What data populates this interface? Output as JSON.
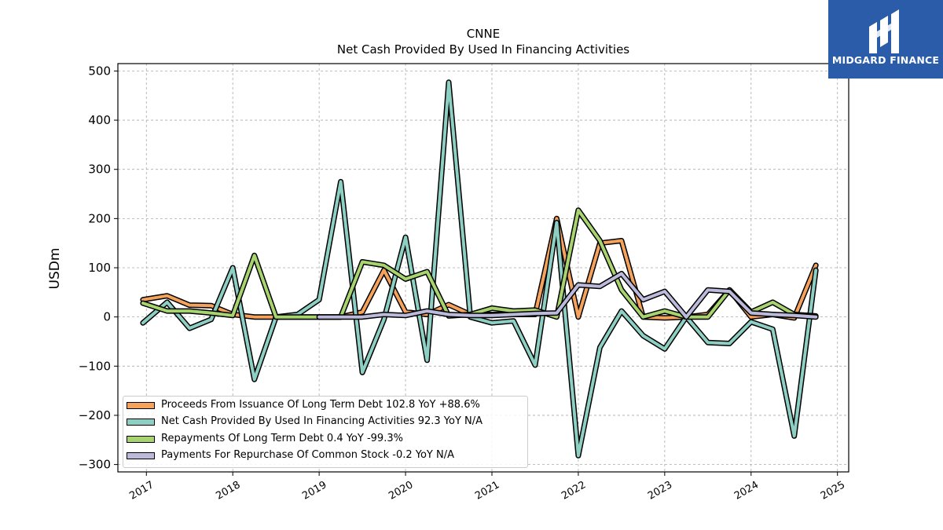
{
  "brand": {
    "name": "MIDGARD FINANCE",
    "color": "#2a5caa",
    "icon": "midgard-logo-icon"
  },
  "chart_data": {
    "type": "line",
    "title": "CNNE",
    "subtitle": "Net Cash Provided By Used In Financing Activities",
    "ylabel": "USDm",
    "xlabel": "",
    "ylim": [
      -315,
      515
    ],
    "xlim": [
      2016.67,
      2025.13
    ],
    "yticks": [
      -300,
      -200,
      -100,
      0,
      100,
      200,
      300,
      400,
      500
    ],
    "ytick_labels": [
      "−300",
      "−200",
      "−100",
      "0",
      "100",
      "200",
      "300",
      "400",
      "500"
    ],
    "xticks": [
      2017,
      2018,
      2019,
      2020,
      2021,
      2022,
      2023,
      2024,
      2025
    ],
    "xtick_labels": [
      "2017",
      "2018",
      "2019",
      "2020",
      "2021",
      "2022",
      "2023",
      "2024",
      "2025"
    ],
    "grid": true,
    "legend_position": "lower-left",
    "series": [
      {
        "name": "Proceeds From Issuance Of Long Term Debt",
        "legend": "Proceeds From Issuance Of Long Term Debt  102.8 YoY +88.6%",
        "color": "#f5a35c",
        "x": [
          2016.96,
          2017.24,
          2017.5,
          2017.75,
          2018.0,
          2018.25,
          2018.5,
          2018.75,
          2019.0,
          2019.25,
          2019.5,
          2019.75,
          2020.0,
          2020.25,
          2020.5,
          2020.75,
          2021.0,
          2021.25,
          2021.5,
          2021.75,
          2022.0,
          2022.25,
          2022.5,
          2022.75,
          2023.0,
          2023.25,
          2023.5,
          2023.75,
          2024.0,
          2024.25,
          2024.5,
          2024.75
        ],
        "y": [
          35,
          43,
          24,
          23,
          5,
          0,
          0,
          0,
          0,
          0,
          10,
          95,
          10,
          5,
          25,
          5,
          5,
          5,
          5,
          200,
          0,
          150,
          155,
          0,
          -2,
          0,
          5,
          55,
          0,
          5,
          -2,
          105
        ]
      },
      {
        "name": "Net Cash Provided By Used In Financing Activities",
        "legend": "Net Cash Provided By Used In Financing Activities  92.3 YoY N/A",
        "color": "#8ecfc3",
        "x": [
          2016.96,
          2017.24,
          2017.5,
          2017.75,
          2018.0,
          2018.25,
          2018.5,
          2018.75,
          2019.0,
          2019.25,
          2019.5,
          2019.75,
          2020.0,
          2020.25,
          2020.5,
          2020.75,
          2021.0,
          2021.25,
          2021.5,
          2021.75,
          2022.0,
          2022.25,
          2022.5,
          2022.75,
          2023.0,
          2023.25,
          2023.5,
          2023.75,
          2024.0,
          2024.25,
          2024.5,
          2024.75
        ],
        "y": [
          -12,
          30,
          -23,
          -5,
          100,
          -127,
          0,
          5,
          35,
          275,
          -113,
          -5,
          162,
          -88,
          477,
          0,
          -12,
          -8,
          -98,
          192,
          -282,
          -62,
          12,
          -38,
          -65,
          0,
          -52,
          -54,
          -10,
          -25,
          -242,
          95
        ]
      },
      {
        "name": "Repayments Of Long Term Debt",
        "legend": "Repayments Of Long Term Debt  0.4 YoY -99.3%",
        "color": "#a8d46f",
        "x": [
          2016.96,
          2017.24,
          2017.5,
          2017.75,
          2018.0,
          2018.25,
          2018.5,
          2018.75,
          2019.0,
          2019.25,
          2019.5,
          2019.75,
          2020.0,
          2020.25,
          2020.5,
          2020.75,
          2021.0,
          2021.25,
          2021.5,
          2021.75,
          2022.0,
          2022.25,
          2022.5,
          2022.75,
          2023.0,
          2023.25,
          2023.5,
          2023.75,
          2024.0,
          2024.25,
          2024.5,
          2024.75
        ],
        "y": [
          28,
          12,
          12,
          8,
          3,
          125,
          0,
          0,
          0,
          0,
          112,
          105,
          77,
          92,
          2,
          5,
          18,
          12,
          14,
          0,
          217,
          155,
          55,
          0,
          12,
          0,
          0,
          55,
          10,
          30,
          5,
          2
        ]
      },
      {
        "name": "Payments For Repurchase Of Common Stock",
        "legend": "Payments For Repurchase Of Common Stock  -0.2 YoY N/A",
        "color": "#bcbadb",
        "x": [
          2019.0,
          2019.25,
          2019.5,
          2019.75,
          2020.0,
          2020.25,
          2020.5,
          2020.75,
          2021.0,
          2021.25,
          2021.5,
          2021.75,
          2022.0,
          2022.25,
          2022.5,
          2022.75,
          2023.0,
          2023.25,
          2023.5,
          2023.75,
          2024.0,
          2024.25,
          2024.5,
          2024.75
        ],
        "y": [
          0,
          0,
          0,
          5,
          3,
          12,
          5,
          3,
          3,
          5,
          7,
          8,
          65,
          62,
          88,
          35,
          52,
          0,
          55,
          52,
          8,
          5,
          3,
          0
        ]
      }
    ]
  }
}
